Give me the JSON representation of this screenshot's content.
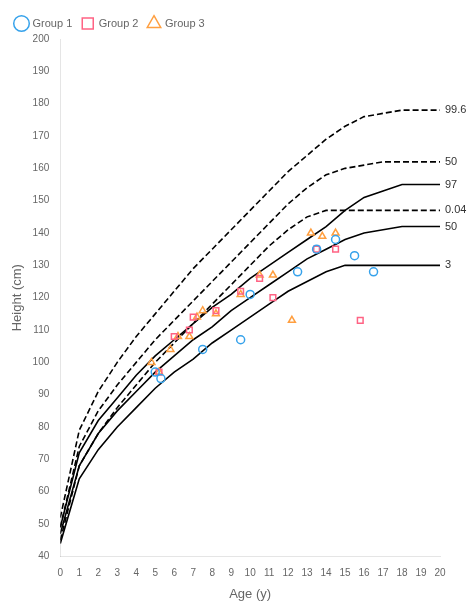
{
  "chart_data": {
    "type": "line",
    "xlabel": "Age (y)",
    "ylabel": "Height (cm)",
    "xlim": [
      0,
      20
    ],
    "ylim": [
      40,
      200
    ],
    "xticks": [
      0,
      1,
      2,
      3,
      4,
      5,
      6,
      7,
      8,
      9,
      10,
      11,
      12,
      13,
      14,
      15,
      16,
      17,
      18,
      19,
      20
    ],
    "yticks": [
      40,
      50,
      60,
      70,
      80,
      90,
      100,
      110,
      120,
      130,
      140,
      150,
      160,
      170,
      180,
      190,
      200
    ],
    "grid": false,
    "legend": "upper left",
    "series": [
      {
        "name": "97",
        "type": "line",
        "line_style": "solid",
        "color": "black",
        "x": [
          0,
          1,
          2,
          3,
          4,
          5,
          6,
          7,
          8,
          9,
          10,
          11,
          12,
          13,
          14,
          15,
          16,
          17,
          18,
          19,
          20
        ],
        "values": [
          49,
          72,
          82,
          89,
          96,
          102,
          107,
          112,
          117,
          121,
          126,
          130,
          134,
          138,
          142,
          147,
          151,
          153,
          155,
          155,
          155
        ]
      },
      {
        "name": "50",
        "type": "line",
        "line_style": "solid",
        "color": "black",
        "x": [
          0,
          1,
          2,
          3,
          4,
          5,
          6,
          7,
          8,
          9,
          10,
          11,
          12,
          13,
          14,
          15,
          16,
          17,
          18,
          19,
          20
        ],
        "values": [
          47,
          68,
          78,
          85,
          91,
          97,
          102,
          107,
          111,
          116,
          120,
          124,
          128,
          132,
          135,
          138,
          140,
          141,
          142,
          142,
          142
        ]
      },
      {
        "name": "3",
        "type": "line",
        "line_style": "solid",
        "color": "black",
        "x": [
          0,
          1,
          2,
          3,
          4,
          5,
          6,
          7,
          8,
          9,
          10,
          11,
          12,
          13,
          14,
          15,
          16,
          17,
          18,
          19,
          20
        ],
        "values": [
          44,
          64,
          73,
          80,
          86,
          92,
          97,
          101,
          106,
          110,
          114,
          118,
          122,
          125,
          128,
          130,
          130,
          130,
          130,
          130,
          130
        ]
      },
      {
        "name": "99.6",
        "type": "line",
        "line_style": "dashed",
        "color": "black",
        "x": [
          0,
          1,
          2,
          3,
          4,
          5,
          6,
          7,
          8,
          9,
          10,
          11,
          12,
          13,
          14,
          15,
          16,
          17,
          18,
          19,
          20
        ],
        "values": [
          52,
          79,
          91,
          100,
          108,
          115,
          122,
          129,
          135,
          141,
          147,
          153,
          159,
          164,
          169,
          173,
          176,
          177,
          178,
          178,
          178
        ]
      },
      {
        "name": "50",
        "type": "line",
        "line_style": "dashed",
        "color": "black",
        "x": [
          0,
          1,
          2,
          3,
          4,
          5,
          6,
          7,
          8,
          9,
          10,
          11,
          12,
          13,
          14,
          15,
          16,
          17,
          18,
          19,
          20
        ],
        "values": [
          49,
          74,
          85,
          93,
          100,
          107,
          113,
          119,
          125,
          131,
          137,
          143,
          149,
          154,
          158,
          160,
          161,
          162,
          162,
          162,
          162
        ]
      },
      {
        "name": "0.04",
        "type": "line",
        "line_style": "dashed",
        "color": "black",
        "x": [
          0,
          1,
          2,
          3,
          4,
          5,
          6,
          7,
          8,
          9,
          10,
          11,
          12,
          13,
          14,
          15,
          16,
          17,
          18,
          19,
          20
        ],
        "values": [
          45,
          68,
          78,
          86,
          93,
          100,
          106,
          112,
          118,
          124,
          130,
          136,
          141,
          145,
          147,
          147,
          147,
          147,
          147,
          147,
          147
        ]
      },
      {
        "name": "Group 1",
        "type": "scatter",
        "marker": "circle",
        "x": [
          5.0,
          5.3,
          7.5,
          9.5,
          10.0,
          12.5,
          13.5,
          14.5,
          15.5,
          16.5
        ],
        "values": [
          97,
          95,
          104,
          107,
          121,
          128,
          135,
          138,
          133,
          128
        ]
      },
      {
        "name": "Group 2",
        "type": "scatter",
        "marker": "square",
        "x": [
          5.2,
          6.0,
          6.8,
          7.0,
          8.2,
          9.5,
          10.5,
          11.2,
          13.5,
          14.5,
          15.8
        ],
        "values": [
          97,
          108,
          110,
          114,
          116,
          122,
          126,
          120,
          135,
          135,
          113
        ]
      },
      {
        "name": "Group 3",
        "type": "scatter",
        "marker": "triangle",
        "x": [
          4.8,
          5.2,
          5.8,
          6.2,
          6.8,
          7.2,
          7.5,
          8.2,
          9.5,
          10.5,
          11.2,
          12.2,
          13.2,
          13.8,
          14.5
        ],
        "values": [
          100,
          97,
          104,
          108,
          108,
          114,
          116,
          115,
          121,
          127,
          127,
          113,
          140,
          139,
          140
        ]
      }
    ]
  }
}
